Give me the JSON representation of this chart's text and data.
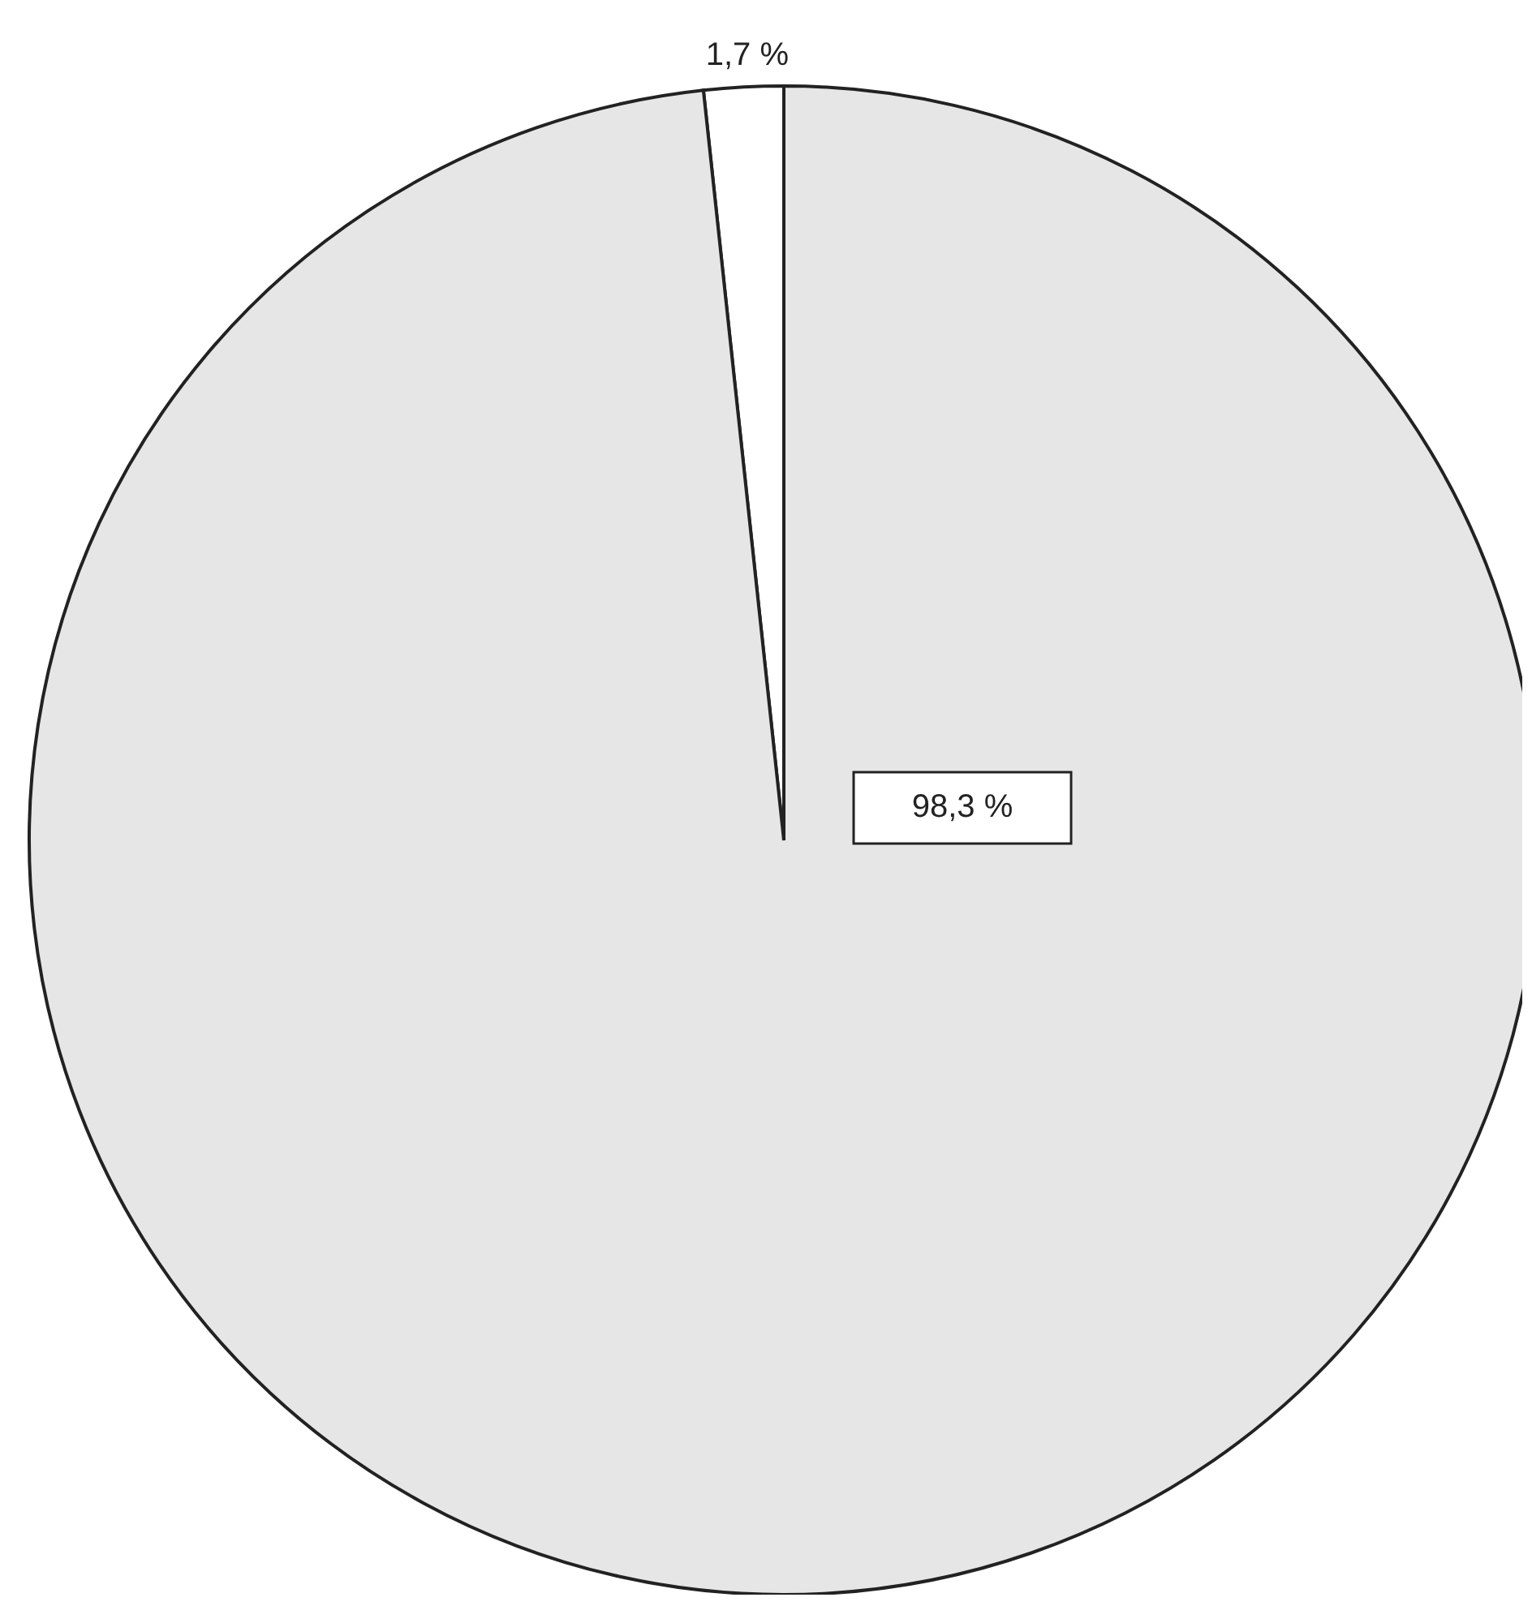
{
  "chart_data": {
    "type": "pie",
    "categories": [
      null,
      null
    ],
    "values": [
      1.7,
      98.3
    ],
    "colors": [
      "#ffffff",
      "#e6e6e6"
    ],
    "value_labels": [
      "1,7 %",
      "98,3 %"
    ],
    "legend": false
  }
}
